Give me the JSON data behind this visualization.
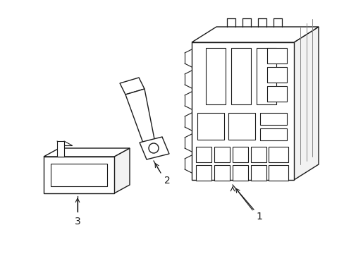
{
  "background_color": "#ffffff",
  "line_color": "#1a1a1a",
  "line_width": 1.0,
  "label_fontsize": 10,
  "comp1_label": "1",
  "comp2_label": "2",
  "comp3_label": "3"
}
